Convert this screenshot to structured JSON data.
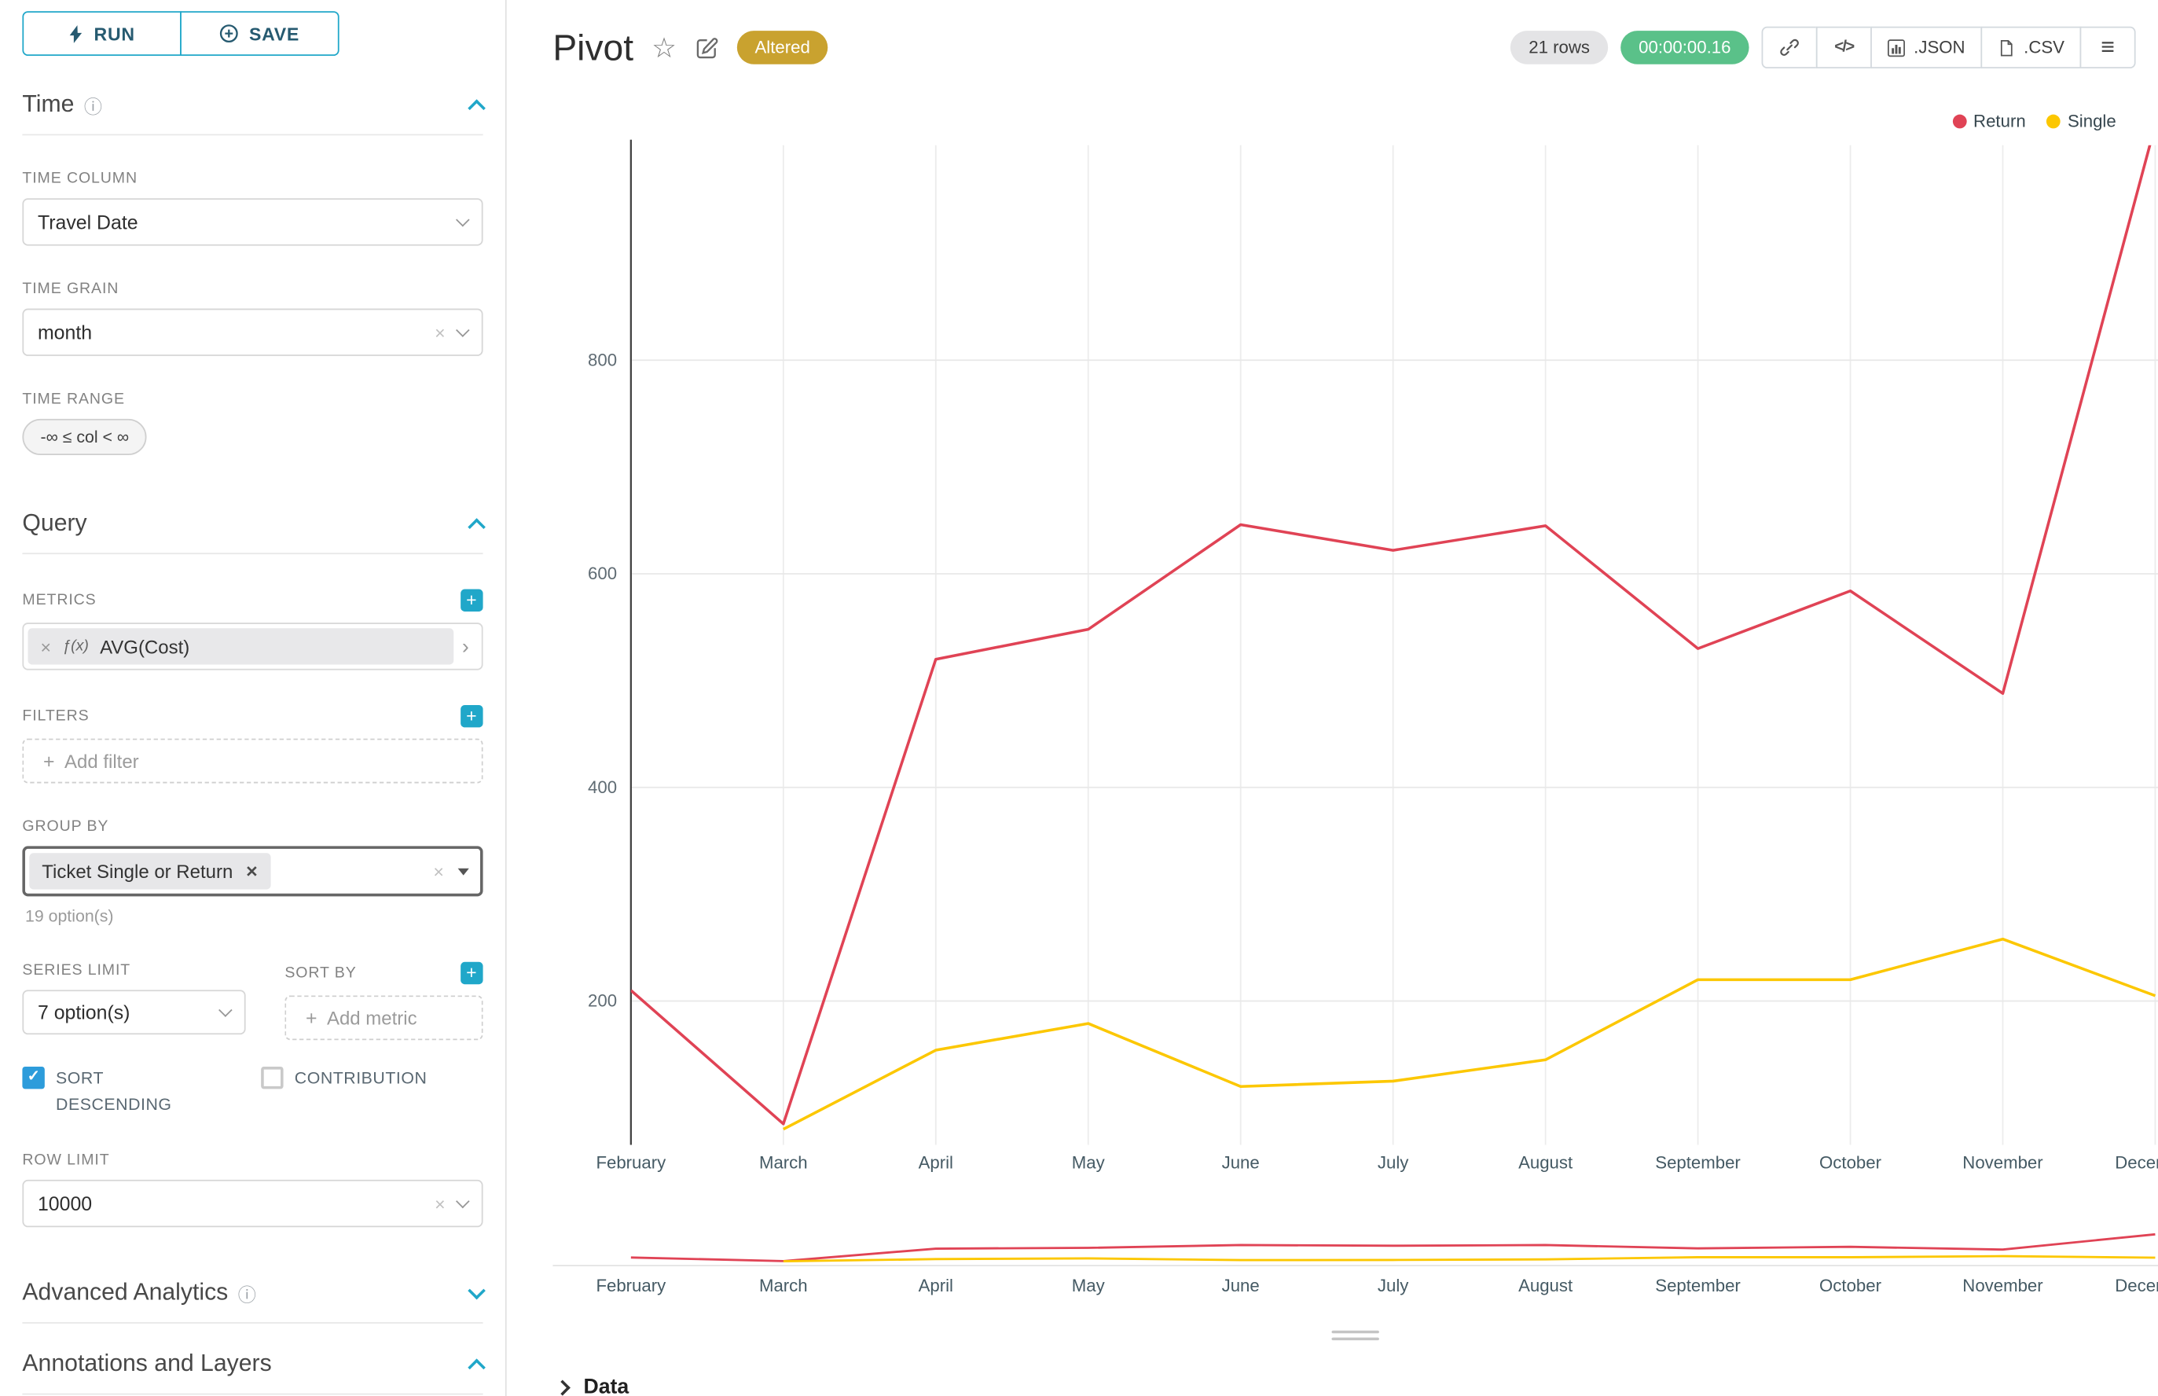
{
  "accent": {
    "primary": "#20A7C9",
    "success": "#5AC189",
    "warning": "#C9A22F"
  },
  "toolbar": {
    "run": "RUN",
    "save": "SAVE"
  },
  "sidebar": {
    "time": {
      "title": "Time",
      "time_column": {
        "label": "TIME COLUMN",
        "value": "Travel Date"
      },
      "time_grain": {
        "label": "TIME GRAIN",
        "value": "month"
      },
      "time_range": {
        "label": "TIME RANGE",
        "value": "-∞ ≤ col < ∞"
      }
    },
    "query": {
      "title": "Query",
      "metrics": {
        "label": "METRICS",
        "fx": "ƒ(x)",
        "value": "AVG(Cost)"
      },
      "filters": {
        "label": "FILTERS",
        "placeholder": "Add filter"
      },
      "group_by": {
        "label": "GROUP BY",
        "chip": "Ticket Single or Return",
        "hint": "19 option(s)"
      },
      "series_limit": {
        "label": "SERIES LIMIT",
        "value": "7 option(s)"
      },
      "sort_by": {
        "label": "SORT BY",
        "placeholder": "Add metric"
      },
      "sort_descending": {
        "label": "SORT DESCENDING",
        "checked": true
      },
      "contribution": {
        "label": "CONTRIBUTION",
        "checked": false
      },
      "row_limit": {
        "label": "ROW LIMIT",
        "value": "10000"
      }
    },
    "advanced": {
      "title": "Advanced Analytics"
    },
    "annotations": {
      "title": "Annotations and Layers"
    }
  },
  "header": {
    "title": "Pivot",
    "altered": "Altered",
    "rows": "21 rows",
    "timer": "00:00:00.16",
    "json": ".JSON",
    "csv": ".CSV"
  },
  "footer": {
    "data_label": "Data"
  },
  "chart_data": {
    "type": "line",
    "title": "Pivot",
    "x": [
      "February",
      "March",
      "April",
      "May",
      "June",
      "July",
      "August",
      "September",
      "October",
      "November",
      "December"
    ],
    "series": [
      {
        "name": "Return",
        "color": "#E04355",
        "values": [
          210,
          85,
          520,
          548,
          646,
          622,
          645,
          530,
          584,
          488,
          1020
        ]
      },
      {
        "name": "Single",
        "color": "#FCC700",
        "values": [
          null,
          80,
          154,
          179,
          120,
          125,
          145,
          220,
          220,
          258,
          205
        ]
      }
    ],
    "yticks": [
      200,
      400,
      600,
      800
    ],
    "ylim": [
      0,
      1000
    ],
    "xlabel": "",
    "ylabel": "",
    "grid": true,
    "legend_position": "top-right",
    "has_minimap": true
  }
}
